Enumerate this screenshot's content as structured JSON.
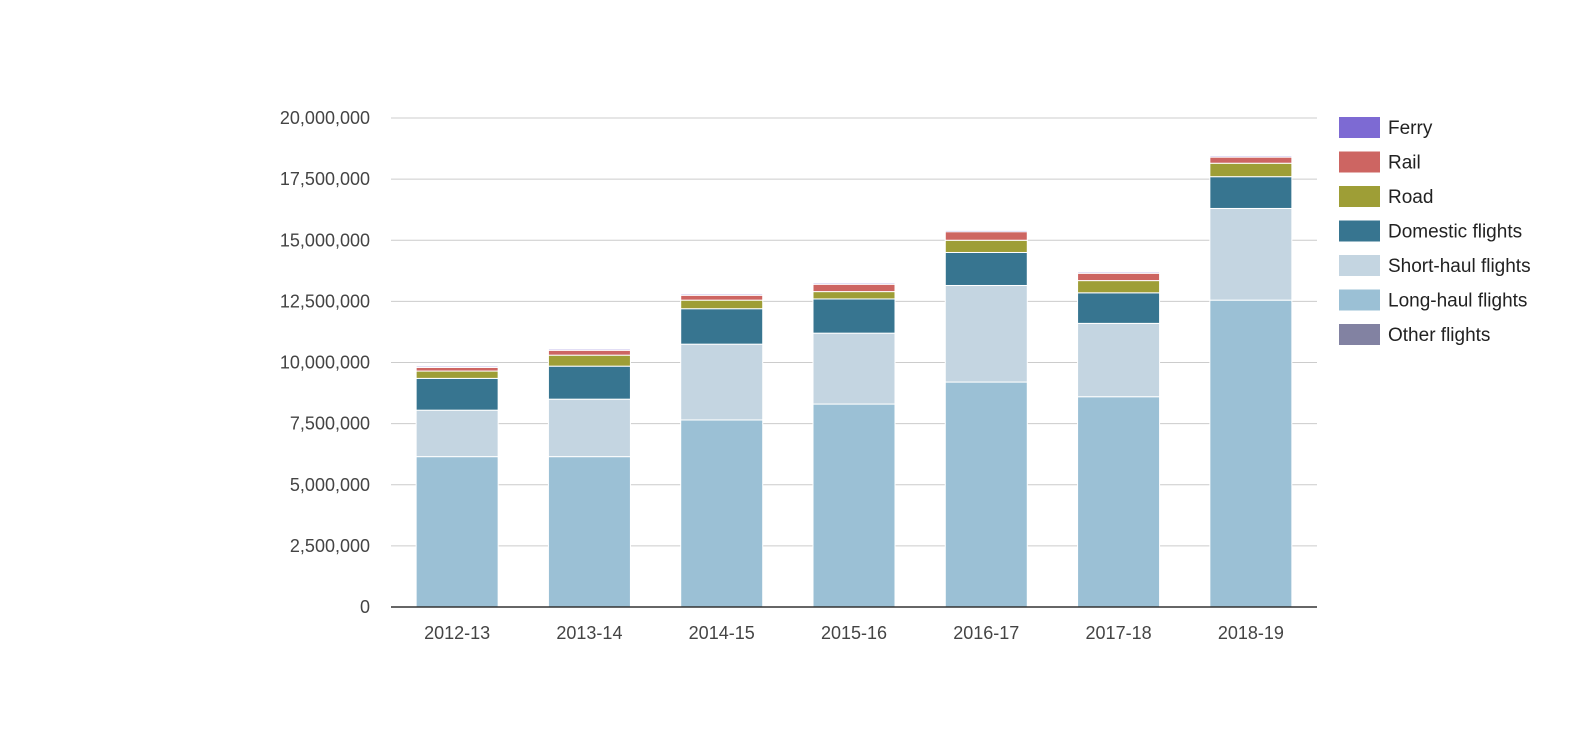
{
  "chart_data": {
    "type": "bar",
    "stacked": true,
    "categories": [
      "2012-13",
      "2013-14",
      "2014-15",
      "2015-16",
      "2016-17",
      "2017-18",
      "2018-19"
    ],
    "series": [
      {
        "name": "Long-haul flights",
        "color": "#9bc0d5",
        "values": [
          6150000,
          6150000,
          7650000,
          8300000,
          9200000,
          8600000,
          12550000
        ]
      },
      {
        "name": "Short-haul flights",
        "color": "#c4d5e1",
        "values": [
          1900000,
          2350000,
          3100000,
          2900000,
          3950000,
          3000000,
          3750000
        ]
      },
      {
        "name": "Domestic flights",
        "color": "#377590",
        "values": [
          1300000,
          1350000,
          1450000,
          1400000,
          1350000,
          1250000,
          1300000
        ]
      },
      {
        "name": "Road",
        "color": "#9e9e36",
        "values": [
          300000,
          450000,
          350000,
          300000,
          500000,
          500000,
          550000
        ]
      },
      {
        "name": "Rail",
        "color": "#cd6562",
        "values": [
          150000,
          200000,
          200000,
          300000,
          350000,
          300000,
          250000
        ]
      },
      {
        "name": "Ferry",
        "color": "#7d6ad3",
        "values": [
          50000,
          50000,
          50000,
          50000,
          50000,
          50000,
          50000
        ]
      },
      {
        "name": "Other flights",
        "color": "#8282a2",
        "values": [
          0,
          0,
          0,
          0,
          0,
          0,
          0
        ]
      }
    ],
    "legend_order": [
      "Ferry",
      "Rail",
      "Road",
      "Domestic flights",
      "Short-haul flights",
      "Long-haul flights",
      "Other flights"
    ],
    "yticks": [
      0,
      2500000,
      5000000,
      7500000,
      10000000,
      12500000,
      15000000,
      17500000,
      20000000
    ],
    "ytick_labels": [
      "0",
      "2,500,000",
      "5,000,000",
      "7,500,000",
      "10,000,000",
      "12,500,000",
      "15,000,000",
      "17,500,000",
      "20,000,000"
    ],
    "ylim": [
      0,
      20000000
    ],
    "grid": true,
    "legend_position": "right",
    "title": "",
    "xlabel": "",
    "ylabel": ""
  }
}
